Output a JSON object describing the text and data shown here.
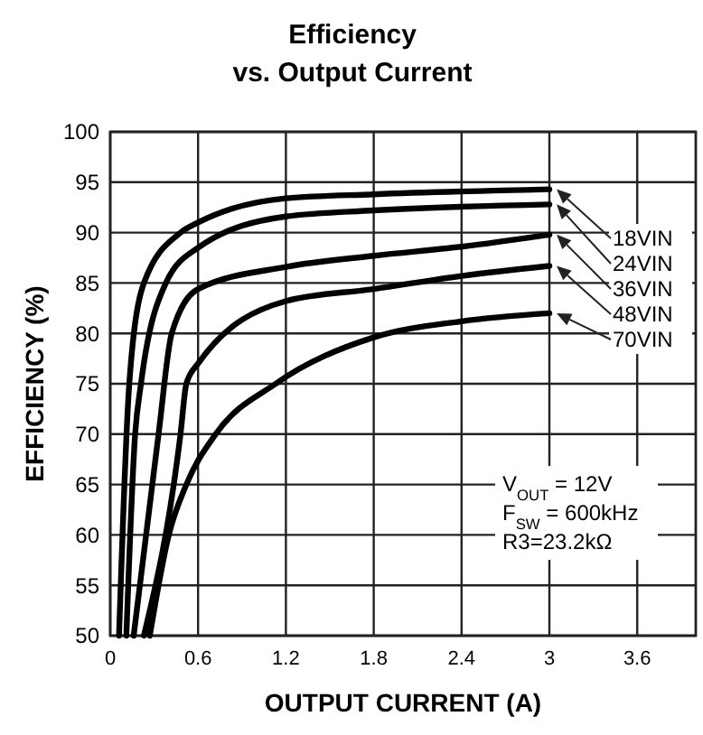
{
  "chart_data": {
    "type": "line",
    "title": "Efficiency",
    "subtitle": "vs. Output Current",
    "xlabel": "OUTPUT CURRENT (A)",
    "ylabel": "EFFICIENCY (%)",
    "xlim": [
      0,
      4
    ],
    "xticks": [
      0,
      0.6,
      1.2,
      1.8,
      2.4,
      3,
      3.6
    ],
    "ylim": [
      50,
      100
    ],
    "yticks": [
      50,
      55,
      60,
      65,
      70,
      75,
      80,
      85,
      90,
      95,
      100
    ],
    "grid": true,
    "legend": false,
    "marker": "none",
    "line_style": "solid",
    "series": [
      {
        "name": "18VIN",
        "color": "#000000",
        "x": [
          0.06,
          0.13,
          0.23,
          0.48,
          0.6,
          1.2,
          1.8,
          3
        ],
        "values": [
          50,
          75,
          85,
          90,
          91,
          93.4,
          93.8,
          94.3
        ]
      },
      {
        "name": "24VIN",
        "color": "#000000",
        "x": [
          0.11,
          0.17,
          0.21,
          0.38,
          0.6,
          1.2,
          1.8,
          3
        ],
        "values": [
          50,
          70,
          75,
          85,
          88.5,
          91.6,
          92.2,
          92.8
        ]
      },
      {
        "name": "36VIN",
        "color": "#000000",
        "x": [
          0.16,
          0.33,
          0.42,
          0.6,
          1.2,
          1.8,
          2.4,
          3
        ],
        "values": [
          50,
          70,
          80,
          84.4,
          86.6,
          87.7,
          88.6,
          89.8
        ]
      },
      {
        "name": "48VIN",
        "color": "#000000",
        "x": [
          0.23,
          0.48,
          0.52,
          0.6,
          1.2,
          1.8,
          2.4,
          3
        ],
        "values": [
          50,
          70,
          75,
          77,
          83.2,
          84.4,
          85.7,
          86.7
        ]
      },
      {
        "name": "70VIN",
        "color": "#000000",
        "x": [
          0.27,
          0.4,
          0.52,
          0.72,
          1.13,
          1.8,
          2.4,
          3
        ],
        "values": [
          50,
          60,
          65,
          70,
          75,
          79.6,
          81.2,
          82
        ]
      }
    ],
    "annotations": [
      "V$_{OUT}$ = 12V",
      "F$_{SW}$ = 600kHz",
      "R3=23.2kΩ"
    ]
  }
}
